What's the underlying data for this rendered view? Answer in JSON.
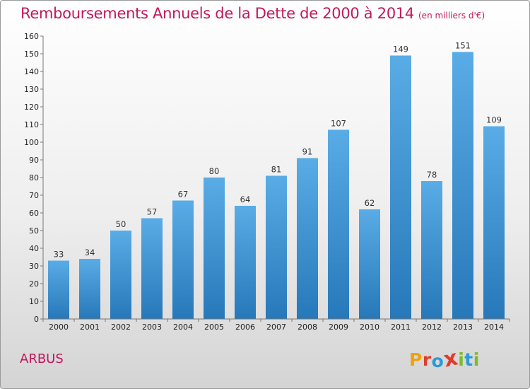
{
  "header": {
    "title": "Remboursements Annuels de la Dette de 2000 à 2014",
    "unit": "(en milliers d'€)"
  },
  "footer": {
    "place": "ARBUS",
    "logo_text": "Proxiti",
    "logo_colors": [
      "#f0a20b",
      "#e03c2d",
      "#2a9bd6",
      "#e03c2d",
      "#7dbb2a",
      "#2a9bd6",
      "#7dbb2a"
    ]
  },
  "chart_data": {
    "type": "bar",
    "categories": [
      "2000",
      "2001",
      "2002",
      "2003",
      "2004",
      "2005",
      "2006",
      "2007",
      "2008",
      "2009",
      "2010",
      "2011",
      "2012",
      "2013",
      "2014"
    ],
    "values": [
      33,
      34,
      50,
      57,
      67,
      80,
      64,
      81,
      91,
      107,
      62,
      149,
      78,
      151,
      109
    ],
    "title": "Remboursements Annuels de la Dette de 2000 à 2014",
    "xlabel": "",
    "ylabel": "",
    "ylim": [
      0,
      160
    ],
    "yticks": [
      0,
      10,
      20,
      30,
      40,
      50,
      60,
      70,
      80,
      90,
      100,
      110,
      120,
      130,
      140,
      150,
      160
    ],
    "grid": false,
    "legend": "none",
    "bar_color_top": "#5aace6",
    "bar_color_bottom": "#2678b9"
  }
}
